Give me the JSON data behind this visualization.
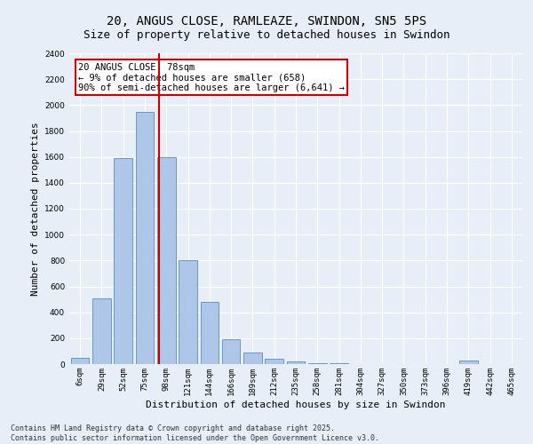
{
  "title1": "20, ANGUS CLOSE, RAMLEAZE, SWINDON, SN5 5PS",
  "title2": "Size of property relative to detached houses in Swindon",
  "xlabel": "Distribution of detached houses by size in Swindon",
  "ylabel": "Number of detached properties",
  "categories": [
    "6sqm",
    "29sqm",
    "52sqm",
    "75sqm",
    "98sqm",
    "121sqm",
    "144sqm",
    "166sqm",
    "189sqm",
    "212sqm",
    "235sqm",
    "258sqm",
    "281sqm",
    "304sqm",
    "327sqm",
    "350sqm",
    "373sqm",
    "396sqm",
    "419sqm",
    "442sqm",
    "465sqm"
  ],
  "values": [
    50,
    510,
    1590,
    1950,
    1600,
    800,
    480,
    195,
    90,
    38,
    22,
    10,
    5,
    3,
    2,
    0,
    0,
    0,
    25,
    0,
    0
  ],
  "bar_color": "#aec6e8",
  "bar_edge_color": "#5b8db8",
  "vline_x": 3.65,
  "vline_color": "#cc0000",
  "annotation_title": "20 ANGUS CLOSE: 78sqm",
  "annotation_line2": "← 9% of detached houses are smaller (658)",
  "annotation_line3": "90% of semi-detached houses are larger (6,641) →",
  "annotation_box_color": "#ffffff",
  "annotation_box_edge": "#cc0000",
  "ylim": [
    0,
    2400
  ],
  "yticks": [
    0,
    200,
    400,
    600,
    800,
    1000,
    1200,
    1400,
    1600,
    1800,
    2000,
    2200,
    2400
  ],
  "background_color": "#e8eef7",
  "footer": "Contains HM Land Registry data © Crown copyright and database right 2025.\nContains public sector information licensed under the Open Government Licence v3.0.",
  "title1_fontsize": 10,
  "title2_fontsize": 9,
  "axis_label_fontsize": 8,
  "tick_fontsize": 6.5,
  "footer_fontsize": 6,
  "annotation_fontsize": 7.5
}
